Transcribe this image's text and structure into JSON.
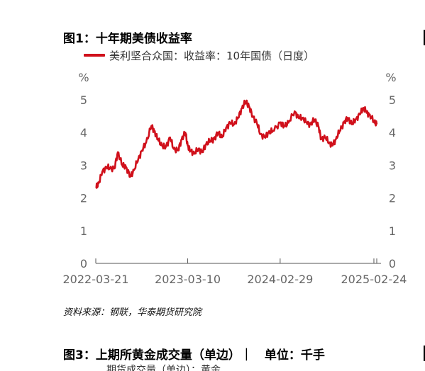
{
  "figure1": {
    "title": "图1：十年期美债收益率",
    "source": "资料来源：钢联，华泰期货研究院"
  },
  "figure3": {
    "title": "图3：上期所黄金成交量（单边）｜　单位：千手",
    "legend_partial": "期货成交量（单边）：黄金"
  },
  "colors": {
    "series": "#d0101b",
    "axis": "#666666"
  },
  "chart_data": {
    "type": "line",
    "title": "图1：十年期美债收益率",
    "xlabel": "",
    "ylabel_left": "%",
    "ylabel_right": "%",
    "ylim": [
      0,
      5
    ],
    "yticks": [
      "0",
      "1",
      "2",
      "3",
      "4",
      "5"
    ],
    "x_tick_labels": [
      "2022-03-21",
      "2023-03-10",
      "2024-02-29",
      "2025-02-24"
    ],
    "x_range": [
      "2022-03-21",
      "2025-03-07"
    ],
    "grid": false,
    "legend": "top-left",
    "series": [
      {
        "name": "美利坚合众国：收益率：10年国债（日度）",
        "x": [
          "2022-03-21",
          "2022-04-01",
          "2022-04-15",
          "2022-05-01",
          "2022-05-15",
          "2022-06-01",
          "2022-06-14",
          "2022-07-01",
          "2022-07-15",
          "2022-08-01",
          "2022-08-15",
          "2022-09-01",
          "2022-09-15",
          "2022-10-01",
          "2022-10-21",
          "2022-11-01",
          "2022-11-15",
          "2022-12-01",
          "2022-12-15",
          "2023-01-01",
          "2023-01-15",
          "2023-02-01",
          "2023-02-15",
          "2023-03-01",
          "2023-03-10",
          "2023-03-20",
          "2023-04-05",
          "2023-04-20",
          "2023-05-05",
          "2023-05-20",
          "2023-06-05",
          "2023-06-20",
          "2023-07-05",
          "2023-07-20",
          "2023-08-05",
          "2023-08-20",
          "2023-09-05",
          "2023-09-20",
          "2023-10-05",
          "2023-10-19",
          "2023-11-01",
          "2023-11-15",
          "2023-12-01",
          "2023-12-15",
          "2024-01-01",
          "2024-01-15",
          "2024-02-01",
          "2024-02-29",
          "2024-03-15",
          "2024-04-01",
          "2024-04-25",
          "2024-05-10",
          "2024-05-25",
          "2024-06-10",
          "2024-06-25",
          "2024-07-10",
          "2024-07-25",
          "2024-08-05",
          "2024-08-20",
          "2024-09-05",
          "2024-09-16",
          "2024-10-01",
          "2024-10-15",
          "2024-11-01",
          "2024-11-15",
          "2024-12-01",
          "2024-12-15",
          "2025-01-01",
          "2025-01-13",
          "2025-01-25",
          "2025-02-05",
          "2025-02-24",
          "2025-03-07"
        ],
        "values": [
          2.3,
          2.45,
          2.8,
          2.95,
          2.9,
          2.9,
          3.4,
          3.0,
          2.95,
          2.65,
          2.85,
          3.2,
          3.45,
          3.7,
          4.2,
          4.05,
          3.8,
          3.6,
          3.55,
          3.85,
          3.5,
          3.45,
          3.8,
          4.0,
          3.6,
          3.45,
          3.35,
          3.5,
          3.4,
          3.65,
          3.75,
          3.8,
          4.0,
          3.85,
          4.15,
          4.3,
          4.25,
          4.45,
          4.75,
          4.95,
          4.8,
          4.5,
          4.3,
          3.95,
          3.85,
          4.0,
          4.05,
          4.3,
          4.2,
          4.3,
          4.65,
          4.45,
          4.45,
          4.3,
          4.25,
          4.4,
          4.2,
          3.8,
          3.85,
          3.7,
          3.6,
          3.8,
          4.05,
          4.3,
          4.45,
          4.25,
          4.4,
          4.55,
          4.75,
          4.65,
          4.55,
          4.35,
          4.25
        ]
      }
    ]
  }
}
